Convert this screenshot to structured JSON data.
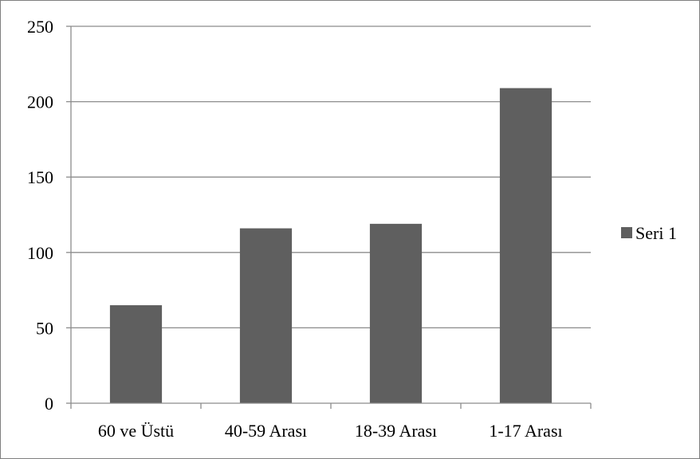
{
  "chart_data": {
    "type": "bar",
    "categories": [
      "60 ve Üstü",
      "40-59 Arası",
      "18-39 Arası",
      "1-17 Arası"
    ],
    "series": [
      {
        "name": "Seri 1",
        "values": [
          65,
          116,
          119,
          209
        ],
        "color": "#5f5f5f"
      }
    ],
    "ylim": [
      0,
      250
    ],
    "yticks": [
      0,
      50,
      100,
      150,
      200,
      250
    ],
    "grid": true,
    "legend": "right",
    "colors": {
      "gridline": "#8c8c8c",
      "axis": "#8c8c8c",
      "bar": "#5f5f5f"
    }
  }
}
